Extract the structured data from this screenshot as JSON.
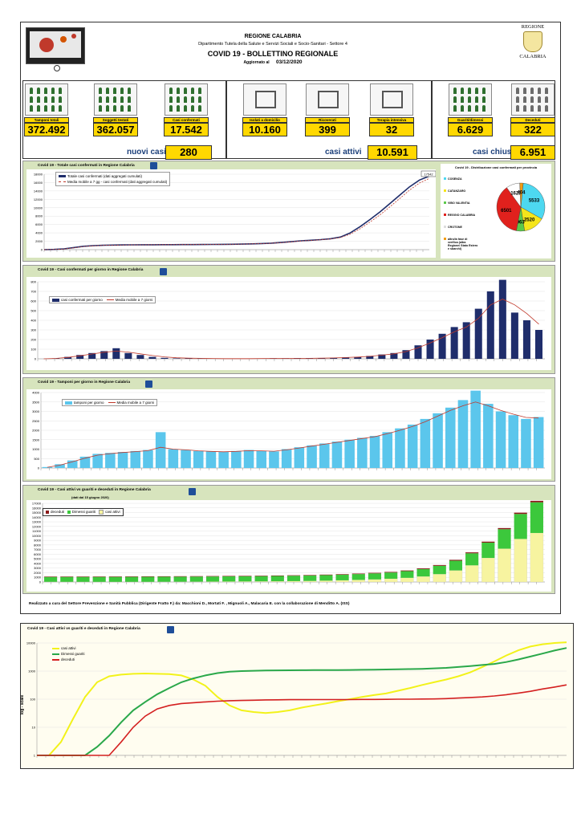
{
  "header": {
    "region": "REGIONE CALABRIA",
    "department": "Dipartimento Tutela della Salute e Servizi Sociali e Socio-Sanitari - Settore 4",
    "title": "COVID 19 - BOLLETTINO REGIONALE",
    "updated_label": "Aggiornato al",
    "updated_date": "03/12/2020",
    "crest_top": "REGIONE",
    "crest_bottom": "CALABRIA"
  },
  "kpis": [
    {
      "label": "Tamponi totali",
      "value": "372.492",
      "icon": "laptop-lab-icon"
    },
    {
      "label": "Soggetti testati",
      "value": "362.057",
      "icon": "people-grid-icon"
    },
    {
      "label": "Casi confermati",
      "value": "17.542",
      "icon": "virus-people-icon"
    },
    {
      "label": "Isolati a domicilio",
      "value": "10.160",
      "icon": "house-icon"
    },
    {
      "label": "Ricoverati",
      "value": "399",
      "icon": "hospital-bed-icon"
    },
    {
      "label": "Terapia intensiva",
      "value": "32",
      "icon": "icu-bed-icon"
    },
    {
      "label": "Guariti/dimessi",
      "value": "6.629",
      "icon": "recovered-person-icon"
    },
    {
      "label": "Deceduti",
      "value": "322",
      "icon": "deceased-stamp-icon"
    }
  ],
  "summary": {
    "new_label": "nuovi casi",
    "new_value": "280",
    "active_label": "casi attivi",
    "active_value": "10.591",
    "closed_label": "casi chiusi",
    "closed_value": "6.951"
  },
  "chart_data": [
    {
      "type": "line",
      "title": "Covid 19 - Totale casi confermati in Regione Calabria",
      "series": [
        {
          "name": "Totale casi confermati (dati aggregati cumulati)",
          "color": "#1f2d6b",
          "values": [
            0,
            50,
            200,
            500,
            800,
            950,
            1050,
            1100,
            1130,
            1150,
            1160,
            1170,
            1180,
            1190,
            1200,
            1210,
            1220,
            1240,
            1260,
            1290,
            1330,
            1380,
            1450,
            1550,
            1700,
            1900,
            2100,
            2250,
            2400,
            2600,
            3000,
            4000,
            5500,
            7200,
            9000,
            11000,
            13000,
            15000,
            16600,
            17542
          ]
        },
        {
          "name": "Media mobile a 7 gg - casi confermati (dati aggregati cumulati)",
          "color": "#c0392b",
          "values": [
            0,
            30,
            150,
            420,
            740,
            900,
            1010,
            1080,
            1120,
            1145,
            1158,
            1168,
            1178,
            1188,
            1198,
            1208,
            1218,
            1236,
            1256,
            1284,
            1322,
            1370,
            1435,
            1530,
            1670,
            1860,
            2060,
            2210,
            2360,
            2550,
            2900,
            3700,
            5000,
            6600,
            8300,
            10200,
            12200,
            14200,
            15900,
            17000
          ]
        }
      ],
      "ylim": [
        0,
        18000
      ],
      "yticks": [
        "0",
        "2000",
        "4000",
        "6000",
        "8000",
        "10000",
        "12000",
        "14000",
        "16000",
        "18000"
      ],
      "end_label": "17542"
    },
    {
      "type": "pie",
      "title": "Covid 19 - Distribuzione casi confermati per provincia",
      "slices": [
        {
          "name": "COSENZA",
          "value": 5533,
          "color": "#4dd8f0"
        },
        {
          "name": "CATANZARO",
          "value": 2520,
          "color": "#f5e51b"
        },
        {
          "name": "VIBO VALENTIA",
          "value": 963,
          "color": "#5cc94a"
        },
        {
          "name": "REGGIO CALABRIA",
          "value": 6501,
          "color": "#e0211d"
        },
        {
          "name": "CROTONE",
          "value": 1621,
          "color": "#ffffff"
        },
        {
          "name": "altro/in fase di verifica (altra Regione/ Stato Estero e sbarchi)",
          "value": 404,
          "color": "#f39c12"
        }
      ]
    },
    {
      "type": "bar",
      "title": "Covid 19 - Casi confermati per giorno in Regione Calabria",
      "series": [
        {
          "name": "casi confermati per giorno",
          "color": "#1f2d6b",
          "values": [
            0,
            5,
            20,
            40,
            60,
            80,
            110,
            60,
            40,
            20,
            10,
            5,
            5,
            3,
            2,
            2,
            1,
            2,
            3,
            5,
            4,
            6,
            5,
            8,
            10,
            15,
            20,
            30,
            45,
            60,
            90,
            140,
            200,
            260,
            330,
            380,
            520,
            700,
            820,
            480,
            400,
            300
          ]
        },
        {
          "name": "Media mobile a 7 giorni",
          "color": "#c0392b",
          "values": [
            0,
            4,
            15,
            32,
            50,
            68,
            80,
            70,
            52,
            34,
            20,
            11,
            7,
            5,
            3,
            2,
            2,
            2,
            3,
            4,
            4,
            5,
            5,
            7,
            9,
            13,
            18,
            26,
            38,
            52,
            75,
            115,
            165,
            220,
            280,
            330,
            420,
            560,
            620,
            560,
            470,
            360
          ]
        }
      ],
      "ylim": [
        0,
        800
      ],
      "yticks": [
        "0",
        "100",
        "200",
        "300",
        "400",
        "500",
        "600",
        "700",
        "800"
      ]
    },
    {
      "type": "bar",
      "title": "Covid 19 - Tamponi per giorno in Regione Calabria",
      "series": [
        {
          "name": "tamponi per giorno",
          "color": "#5bc6ec",
          "values": [
            50,
            200,
            400,
            600,
            750,
            800,
            850,
            900,
            950,
            1900,
            1000,
            950,
            900,
            880,
            850,
            900,
            950,
            900,
            880,
            1000,
            1100,
            1200,
            1300,
            1400,
            1500,
            1600,
            1700,
            1900,
            2100,
            2300,
            2600,
            2900,
            3200,
            3600,
            4100,
            3400,
            3000,
            2800,
            2600,
            2700
          ]
        },
        {
          "name": "Media mobile a 7 giorni",
          "color": "#c0392b",
          "values": [
            40,
            150,
            330,
            520,
            680,
            760,
            820,
            870,
            920,
            1100,
            1000,
            960,
            910,
            880,
            860,
            880,
            920,
            910,
            890,
            960,
            1060,
            1160,
            1260,
            1360,
            1460,
            1560,
            1660,
            1820,
            2000,
            2200,
            2450,
            2750,
            3050,
            3300,
            3500,
            3300,
            3050,
            2850,
            2680,
            2650
          ]
        }
      ],
      "ylim": [
        0,
        4000
      ],
      "yticks": [
        "0",
        "500",
        "1000",
        "1500",
        "2000",
        "2500",
        "3000",
        "3500",
        "4000"
      ]
    },
    {
      "type": "bar",
      "title": "Covid 19 - Casi attivi vs guariti e deceduti in Regione Calabria",
      "subtitle": "(dati dal 15 giugno 2020)",
      "series": [
        {
          "name": "deceduti",
          "color": "#8b1a1a",
          "values": [
            97,
            97,
            97,
            97,
            97,
            97,
            97,
            97,
            97,
            98,
            98,
            99,
            100,
            100,
            100,
            101,
            102,
            105,
            110,
            115,
            120,
            130,
            140,
            150,
            165,
            180,
            200,
            220,
            250,
            280,
            322
          ]
        },
        {
          "name": "Dimessi guariti",
          "color": "#3cc83c",
          "values": [
            1050,
            1055,
            1060,
            1065,
            1070,
            1075,
            1080,
            1085,
            1090,
            1095,
            1100,
            1110,
            1120,
            1130,
            1140,
            1160,
            1180,
            1200,
            1230,
            1260,
            1300,
            1350,
            1450,
            1600,
            1800,
            2100,
            2600,
            3300,
            4200,
            5400,
            6629
          ]
        },
        {
          "name": "casi attivi",
          "color": "#f7f4a0",
          "values": [
            40,
            38,
            35,
            33,
            32,
            35,
            40,
            50,
            60,
            70,
            85,
            100,
            120,
            140,
            160,
            190,
            230,
            290,
            360,
            450,
            560,
            700,
            900,
            1200,
            1700,
            2500,
            3600,
            5200,
            7200,
            9300,
            10591
          ]
        }
      ],
      "ylim": [
        0,
        17000
      ],
      "yticks": [
        "0",
        "1000",
        "2000",
        "3000",
        "4000",
        "5000",
        "6000",
        "7000",
        "8000",
        "9000",
        "10000",
        "11000",
        "12000",
        "13000",
        "14000",
        "15000",
        "16000",
        "17000"
      ]
    },
    {
      "type": "line",
      "title": "Covid 19 - Casi attivi vs guariti e deceduti in Regione Calabria",
      "ylabel": "log - scale",
      "yscale": "log",
      "ylim": [
        1,
        10000
      ],
      "yticks": [
        "1",
        "10",
        "100",
        "1000",
        "10000"
      ],
      "series": [
        {
          "name": "casi attivi",
          "color": "#f2f21a",
          "values": [
            1,
            1,
            3,
            20,
            120,
            400,
            650,
            750,
            800,
            820,
            800,
            780,
            700,
            500,
            300,
            120,
            60,
            40,
            35,
            32,
            35,
            40,
            50,
            60,
            70,
            85,
            100,
            120,
            140,
            160,
            200,
            250,
            320,
            400,
            500,
            650,
            900,
            1400,
            2200,
            3600,
            5500,
            7500,
            9000,
            10000,
            10591
          ]
        },
        {
          "name": "Dimessi guariti",
          "color": "#2aa84a",
          "values": [
            1,
            1,
            1,
            1,
            1,
            2,
            5,
            15,
            40,
            80,
            150,
            250,
            400,
            550,
            700,
            850,
            950,
            1000,
            1030,
            1050,
            1060,
            1070,
            1075,
            1080,
            1085,
            1090,
            1100,
            1110,
            1120,
            1140,
            1160,
            1180,
            1200,
            1250,
            1300,
            1400,
            1500,
            1650,
            1800,
            2100,
            2600,
            3300,
            4200,
            5400,
            6629
          ]
        },
        {
          "name": "deceduti",
          "color": "#d42020",
          "values": [
            1,
            1,
            1,
            1,
            1,
            1,
            1,
            3,
            10,
            25,
            45,
            60,
            70,
            75,
            80,
            85,
            88,
            90,
            92,
            94,
            95,
            96,
            96,
            97,
            97,
            97,
            97,
            98,
            98,
            99,
            100,
            100,
            101,
            102,
            105,
            110,
            115,
            120,
            130,
            145,
            165,
            190,
            230,
            270,
            322
          ]
        }
      ]
    }
  ],
  "footer": "Realizzato a cura del Settore Prevenzione e Sanità Pubblica (Dirigente Fratto F.) da: Macchioni D., Mortati F. , Mignuoli A., Malacaria E. con la collaborazione di Menditto A. (ISS)"
}
